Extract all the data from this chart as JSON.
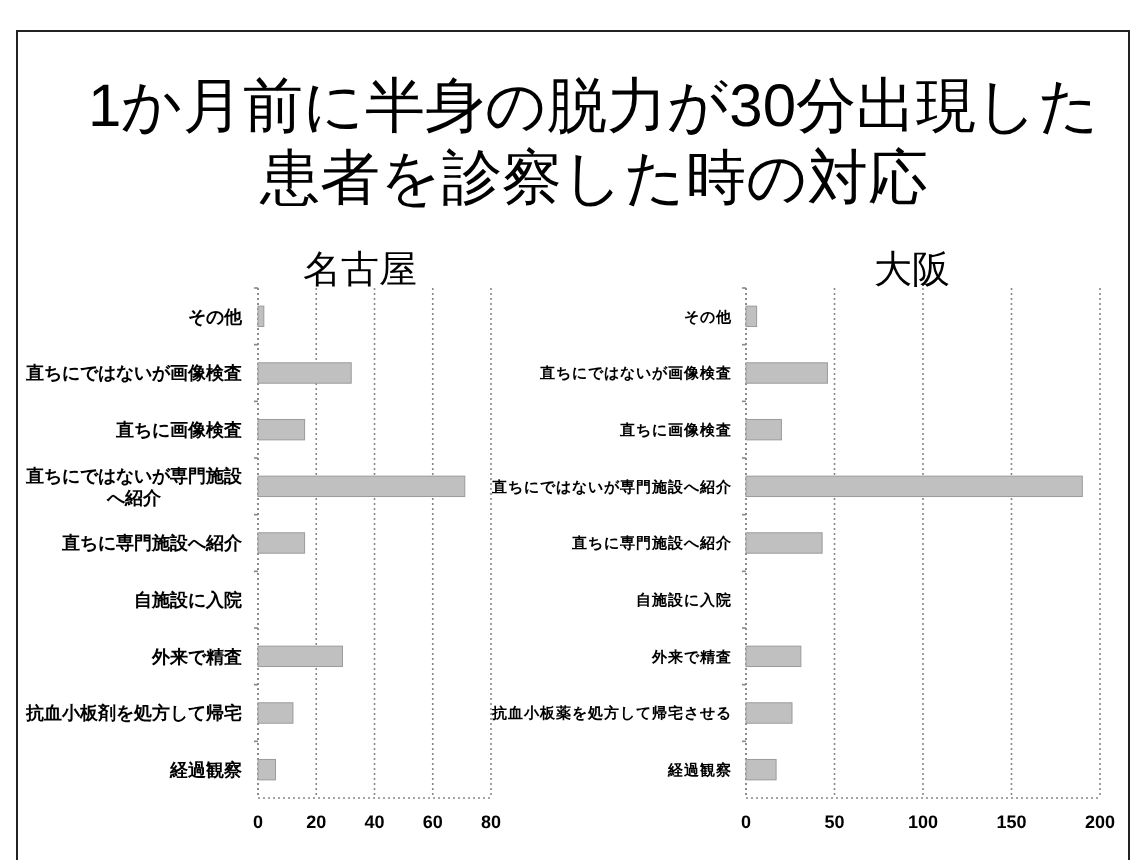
{
  "chart_data": [
    {
      "type": "bar",
      "orientation": "horizontal",
      "title": "1か月前に半身の脱力が30分出現した患者を診察した時の対応",
      "subtitle": "名古屋",
      "categories": [
        "その他",
        "直ちにではないが画像検査",
        "直ちに画像検査",
        "直ちにではないが専門施設へ紹介",
        "直ちに専門施設へ紹介",
        "自施設に入院",
        "外来で精査",
        "抗血小板剤を処方して帰宅",
        "経過観察"
      ],
      "values": [
        2,
        32,
        16,
        71,
        16,
        0,
        29,
        12,
        6
      ],
      "color": "#c0c0c0",
      "xlim": [
        0,
        80
      ],
      "xticks": [
        0,
        20,
        40,
        60,
        80
      ],
      "grid": "x"
    },
    {
      "type": "bar",
      "orientation": "horizontal",
      "subtitle": "大阪",
      "categories": [
        "その他",
        "直ちにではないが画像検査",
        "直ちに画像検査",
        "直ちにではないが専門施設へ紹介",
        "直ちに専門施設へ紹介",
        "自施設に入院",
        "外来で精査",
        "抗血小板薬を処方して帰宅させる",
        "経過観察"
      ],
      "values": [
        6,
        46,
        20,
        190,
        43,
        0,
        31,
        26,
        17
      ],
      "color": "#c0c0c0",
      "xlim": [
        0,
        200
      ],
      "xticks": [
        0,
        50,
        100,
        150,
        200
      ],
      "grid": "x"
    }
  ]
}
